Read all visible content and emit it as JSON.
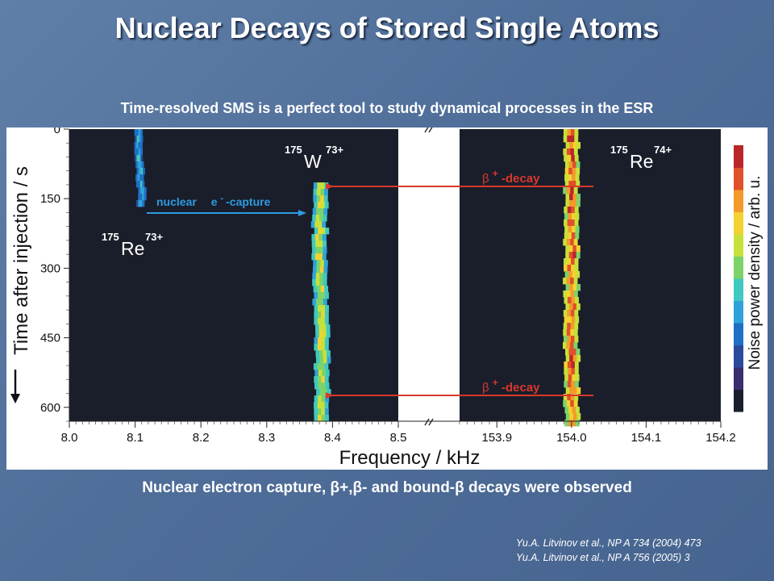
{
  "slide": {
    "title": "Nuclear Decays of Stored Single Atoms",
    "subtitle": "Time-resolved SMS is a perfect tool to study dynamical processes in the ESR",
    "caption": "Nuclear electron capture, β+,β- and bound-β decays were observed",
    "references": [
      "Yu.A. Litvinov et al., NP A 734 (2004) 473",
      "Yu.A. Litvinov et al., NP A 756 (2005) 3"
    ]
  },
  "chart_data": {
    "type": "heatmap",
    "xlabel": "Frequency / kHz",
    "ylabel": "Time after injection / s",
    "colorbar_label": "Noise power density / arb. u.",
    "x_ticks_left": [
      "8.0",
      "8.1",
      "8.2",
      "8.3",
      "8.4",
      "8.5"
    ],
    "x_ticks_right": [
      "153.9",
      "154.0",
      "154.1",
      "154.2"
    ],
    "x_range_left": [
      8.0,
      8.5
    ],
    "x_range_right": [
      153.85,
      154.2
    ],
    "y_ticks": [
      "0",
      "150",
      "300",
      "450",
      "600"
    ],
    "y_range": [
      0,
      630
    ],
    "traces": [
      {
        "name": "175Re73+",
        "freq_start": 8.105,
        "freq_end": 8.11,
        "t_start": 0,
        "t_end": 160
      },
      {
        "name": "175W73+",
        "freq_start": 8.38,
        "freq_end": 8.385,
        "t_start": 115,
        "t_end": 630
      },
      {
        "name": "175Re74+",
        "freq_start": 154.0,
        "freq_end": 154.0,
        "t_start": 0,
        "t_end": 630
      }
    ],
    "labels": {
      "re73_mass": "175",
      "re73_symbol": "Re",
      "re73_charge": "73+",
      "w73_mass": "175",
      "w73_symbol": "W",
      "w73_charge": "73+",
      "re74_mass": "175",
      "re74_symbol": "Re",
      "re74_charge": "74+"
    },
    "annotations": [
      {
        "text_a": "nuclear",
        "text_b": "e",
        "text_sup": "- ",
        "text_c": "-capture",
        "type": "ec"
      },
      {
        "text_a": "β",
        "text_sup": "+",
        "text_c": " -decay",
        "t": 115,
        "type": "beta"
      },
      {
        "text_a": "β",
        "text_sup": "+",
        "text_c": " -decay",
        "t": 580,
        "type": "beta"
      }
    ],
    "colorbar_colors": [
      "#1a1f2e",
      "#3a2e6e",
      "#2a4a9c",
      "#1f6fc4",
      "#2fa3d8",
      "#3fc9c0",
      "#7cd36a",
      "#c8e03a",
      "#f3d230",
      "#f39a2a",
      "#e0502a",
      "#b9262a"
    ]
  }
}
